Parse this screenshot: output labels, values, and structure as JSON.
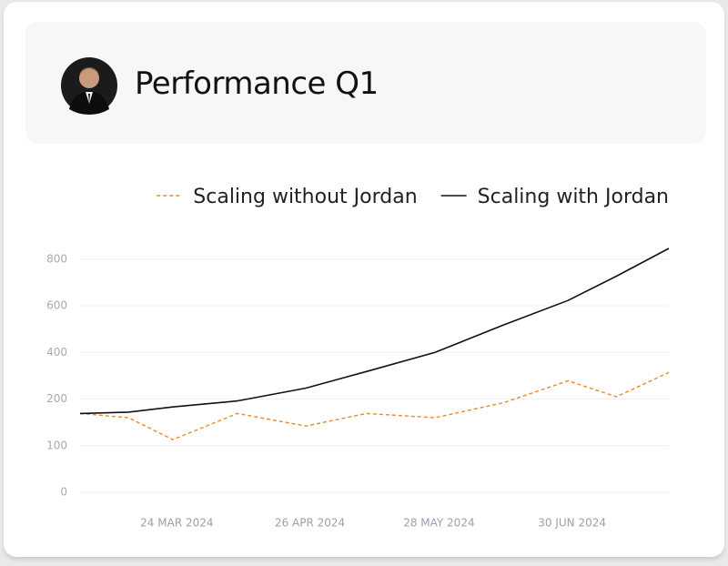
{
  "header": {
    "title": "Performance Q1"
  },
  "chart_data": {
    "type": "line",
    "x": [
      "2024-02-29",
      "2024-03-12",
      "2024-03-23",
      "2024-04-08",
      "2024-04-25",
      "2024-05-10",
      "2024-05-27",
      "2024-06-13",
      "2024-06-29",
      "2024-07-11",
      "2024-07-24"
    ],
    "series": [
      {
        "name": "Scaling without Jordan",
        "color": "#e8892b",
        "dashed": true,
        "values": [
          169,
          160,
          113,
          169,
          142,
          169,
          160,
          192,
          278,
          210,
          314
        ]
      },
      {
        "name": "Scaling with Jordan",
        "color": "#111111",
        "dashed": false,
        "values": [
          169,
          172,
          183,
          196,
          247,
          318,
          400,
          518,
          623,
          727,
          846
        ]
      }
    ],
    "xlim": [
      "2024-02-29",
      "2024-07-24"
    ],
    "xticks": [
      {
        "value": "2024-03-24",
        "label": "24 MAR 2024"
      },
      {
        "value": "2024-04-26",
        "label": "26 APR 2024"
      },
      {
        "value": "2024-05-28",
        "label": "28 MAY 2024"
      },
      {
        "value": "2024-06-30",
        "label": "30 JUN 2024"
      }
    ],
    "ylim": [
      0,
      850
    ],
    "yticks": [
      0,
      100,
      200,
      400,
      600,
      800
    ],
    "grid": true,
    "legend": "top-right"
  }
}
